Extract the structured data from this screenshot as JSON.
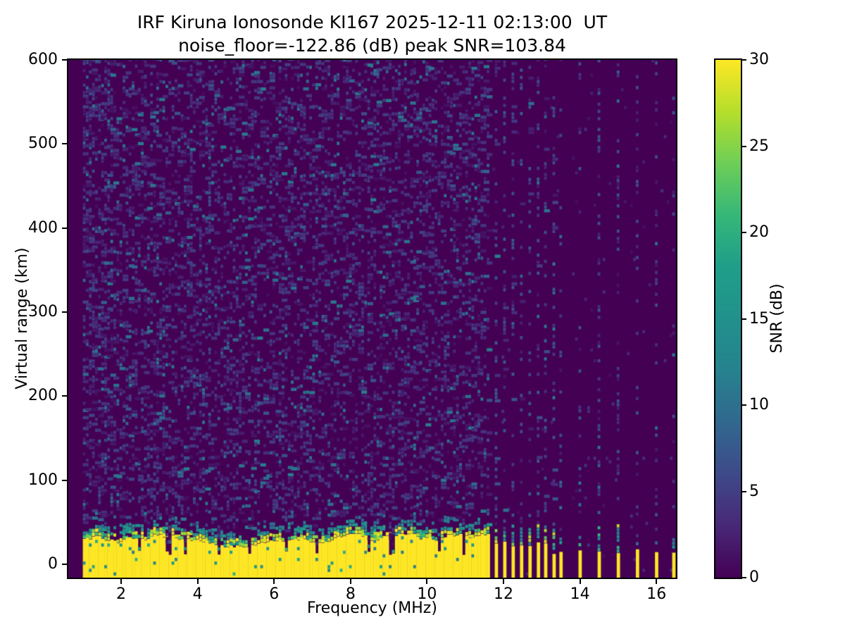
{
  "chart_data": {
    "type": "heatmap",
    "title": "IRF Kiruna Ionosonde KI167 2025-12-11 02:13:00  UT",
    "subtitle": "noise_floor=-122.86 (dB) peak SNR=103.84",
    "xlabel": "Frequency (MHz)",
    "ylabel": "Virtual range (km)",
    "xlim": [
      0.62,
      16.51
    ],
    "ylim": [
      -16,
      600
    ],
    "x_ticks": [
      2,
      4,
      6,
      8,
      10,
      12,
      14,
      16
    ],
    "y_ticks": [
      0,
      100,
      200,
      300,
      400,
      500,
      600
    ],
    "grid": false,
    "colorbar": {
      "label": "SNR (dB)",
      "ticks": [
        0,
        5,
        10,
        15,
        20,
        25,
        30
      ],
      "vmin": 0,
      "vmax": 30,
      "colormap": "viridis",
      "color_low": "#440154",
      "color_high": "#fde725"
    },
    "noise_floor_db": -122.86,
    "peak_snr_db": 103.84,
    "data_freq_range_mhz": [
      1.0,
      16.5
    ],
    "ground_clutter": {
      "freq_start_mhz": 1.0,
      "freq_end_mhz": 11.63,
      "top_km_min": 20,
      "top_km_max": 36,
      "transition_top_km": 55,
      "snr_db": 30,
      "notch_freqs_mhz": [
        2.45,
        3.2,
        3.65,
        4.5,
        5.3,
        6.3,
        7.1,
        8.45,
        9.05,
        10.3,
        10.9
      ]
    },
    "dense_stripes_mhz": [
      11.81,
      12.03,
      12.25,
      12.47,
      12.69,
      12.91,
      13.1,
      13.32
    ],
    "sparse_stripes_mhz": [
      13.5,
      14.0,
      14.5,
      15.0,
      15.5,
      16.0,
      16.45
    ],
    "tall_stripes_mhz": [
      14.5,
      15.0
    ],
    "stripe_width_mhz": 0.09,
    "noise": {
      "cell_mhz": 0.08,
      "cell_km": 4.3,
      "background_snr_db": 0,
      "speckle_snr_db_max": 12
    }
  }
}
